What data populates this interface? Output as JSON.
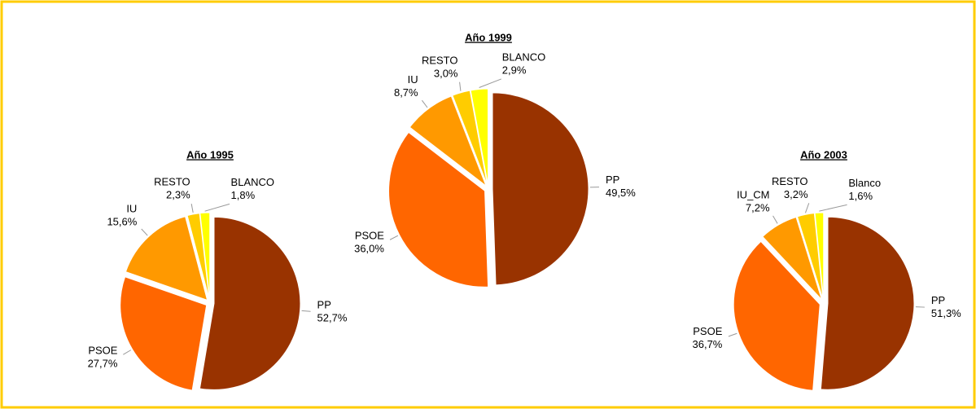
{
  "chart_data": [
    {
      "type": "pie",
      "title": "Año 1995",
      "categories": [
        "PP",
        "PSOE",
        "IU",
        "RESTO",
        "BLANCO"
      ],
      "values": [
        52.7,
        27.7,
        15.6,
        2.3,
        1.8
      ],
      "value_labels": [
        "52,7%",
        "27,7%",
        "15,6%",
        "2,3%",
        "1,8%"
      ],
      "colors": [
        "#993300",
        "#ff6600",
        "#ff9900",
        "#ffcc00",
        "#ffff00"
      ]
    },
    {
      "type": "pie",
      "title": "Año 1999",
      "categories": [
        "PP",
        "PSOE",
        "IU",
        "RESTO",
        "BLANCO"
      ],
      "values": [
        49.5,
        36.0,
        8.7,
        3.0,
        2.9
      ],
      "value_labels": [
        "49,5%",
        "36,0%",
        "8,7%",
        "3,0%",
        "2,9%"
      ],
      "colors": [
        "#993300",
        "#ff6600",
        "#ff9900",
        "#ffcc00",
        "#ffff00"
      ]
    },
    {
      "type": "pie",
      "title": "Año 2003",
      "categories": [
        "PP",
        "PSOE",
        "IU_CM",
        "RESTO",
        "Blanco"
      ],
      "values": [
        51.3,
        36.7,
        7.2,
        3.2,
        1.6
      ],
      "value_labels": [
        "51,3%",
        "36,7%",
        "7,2%",
        "3,2%",
        "1,6%"
      ],
      "colors": [
        "#993300",
        "#ff6600",
        "#ff9900",
        "#ffcc00",
        "#ffff00"
      ]
    }
  ]
}
